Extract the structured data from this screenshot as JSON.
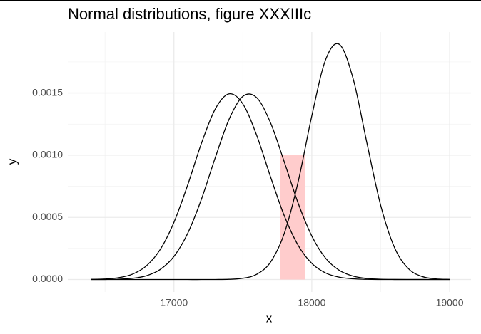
{
  "chart_data": {
    "type": "line",
    "title": "Normal distributions, figure XXXIIIc",
    "x_label": "x",
    "y_label": "y",
    "x": [
      16400,
      16500,
      16600,
      16700,
      16800,
      16900,
      17000,
      17100,
      17200,
      17300,
      17400,
      17500,
      17600,
      17700,
      17800,
      17900,
      18000,
      18100,
      18200,
      18300,
      18400,
      18500,
      18600,
      18700,
      18800,
      18900,
      19000
    ],
    "series": [
      {
        "color": "#000000",
        "values": [
          1.2e-06,
          4.5e-06,
          1.5e-05,
          4.36e-05,
          0.00011,
          0.000241,
          0.00046,
          0.000761,
          0.001097,
          0.001372,
          0.001493,
          0.001412,
          0.00116,
          0.000828,
          0.000514,
          0.000277,
          0.00013,
          5.3e-05,
          1.88e-05,
          5.8e-06,
          1.5e-06,
          4e-07,
          1e-07,
          0,
          0,
          0,
          0
        ]
      },
      {
        "color": "#000000",
        "values": [
          2e-07,
          7e-07,
          2.8e-06,
          1e-05,
          3.05e-05,
          8.08e-05,
          0.000186,
          0.000372,
          0.000648,
          0.000981,
          0.001289,
          0.001473,
          0.001463,
          0.001262,
          0.000947,
          0.000617,
          0.00035,
          0.000172,
          7.37e-05,
          2.74e-05,
          8.9e-06,
          2.5e-06,
          6e-07,
          1e-07,
          0,
          0,
          0
        ]
      },
      {
        "color": "#000000",
        "values": [
          0,
          0,
          0,
          0,
          0,
          0,
          0,
          0,
          0,
          3e-07,
          1.9e-06,
          1e-05,
          4.19e-05,
          0.000139,
          0.00037,
          0.000781,
          0.001316,
          0.001767,
          0.001891,
          0.001614,
          0.001097,
          0.000595,
          0.000257,
          8.85e-05,
          2.43e-05,
          5.3e-06,
          9e-07
        ]
      }
    ],
    "shade": {
      "xmin": 17770,
      "xmax": 17950,
      "ymax": 0.001,
      "color": "#ffcccc"
    },
    "xlim": [
      16230,
      19155
    ],
    "xticks": [
      17000,
      18000,
      19000
    ],
    "xminor": [
      16500,
      17500,
      18500
    ],
    "ylim": [
      -0.0001,
      0.00199
    ],
    "yticks": [
      {
        "value": 0,
        "label": "0.0000"
      },
      0.0005,
      {
        "value": 0.001,
        "label": "0.0010"
      },
      0.0015
    ],
    "yminor": [
      0.00025,
      0.00075,
      0.00125,
      0.00175
    ],
    "grid": true
  }
}
